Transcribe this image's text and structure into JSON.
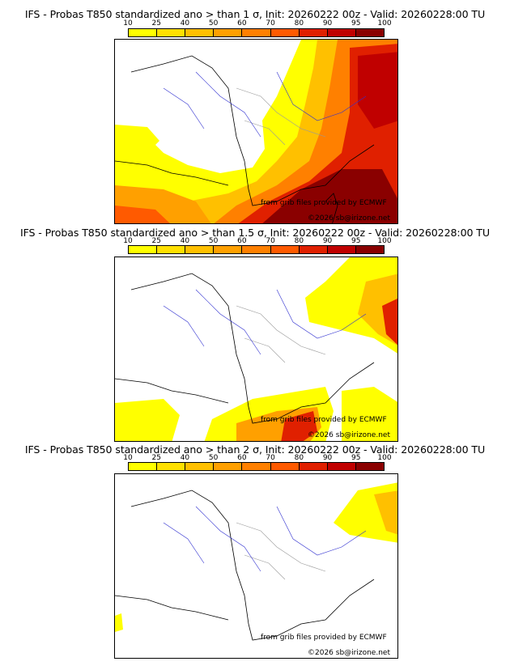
{
  "colorbar": {
    "ticks": [
      "10",
      "25",
      "40",
      "50",
      "60",
      "70",
      "80",
      "90",
      "95",
      "100"
    ],
    "colors": [
      "#ffff00",
      "#ffe000",
      "#ffc000",
      "#ffa000",
      "#ff8000",
      "#ff5a00",
      "#e02000",
      "#c00000",
      "#8a0000"
    ]
  },
  "panels": [
    {
      "title": "IFS - Probas T850  standardized ano > than 1 σ, Init: 20260222 00z - Valid: 20260228:00 TU",
      "credit1": "from grib files provided by ECMWF",
      "credit2": "©2026 sb@irizone.net"
    },
    {
      "title": "IFS - Probas T850  standardized ano > than 1.5 σ, Init: 20260222 00z - Valid: 20260228:00 TU",
      "credit1": "from grib files provided by ECMWF",
      "credit2": "©2026 sb@irizone.net"
    },
    {
      "title": "IFS - Probas T850  standardized ano > than 2 σ, Init: 20260222 00z - Valid: 20260228:00 TU",
      "credit1": "from grib files provided by ECMWF",
      "credit2": "©2026 sb@irizone.net"
    }
  ]
}
